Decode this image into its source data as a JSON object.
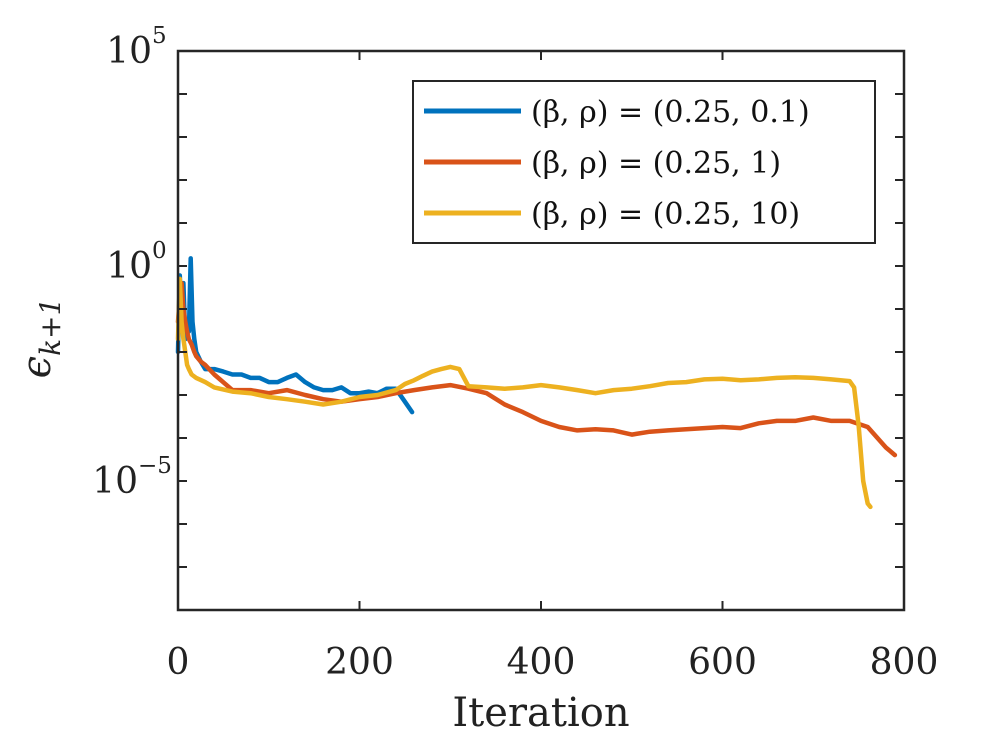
{
  "chart_data": {
    "type": "line",
    "xlabel": "Iteration",
    "ylabel": "ϵ",
    "ylabel_sub": "k+1",
    "xlim": [
      0,
      800
    ],
    "ylim": [
      1e-08,
      100000
    ],
    "yscale": "log",
    "grid": false,
    "legend_position": "top-right",
    "x_ticks": [
      {
        "value": 0,
        "label": "0"
      },
      {
        "value": 200,
        "label": "200"
      },
      {
        "value": 400,
        "label": "400"
      },
      {
        "value": 600,
        "label": "600"
      },
      {
        "value": 800,
        "label": "800"
      }
    ],
    "y_ticks": [
      {
        "value": 100000,
        "base": "10",
        "exp": "5"
      },
      {
        "value": 1,
        "base": "10",
        "exp": "0"
      },
      {
        "value": 1e-05,
        "base": "10",
        "exp": "−5"
      }
    ],
    "y_minor_ticks": [
      10000,
      1000,
      100,
      10,
      0.1,
      0.01,
      0.001,
      0.0001,
      1e-06,
      1e-07
    ],
    "series": [
      {
        "name": "(β, ρ) = (0.25, 0.1)",
        "color": "#0072BD",
        "x": [
          0,
          2,
          4,
          6,
          8,
          10,
          12,
          14,
          16,
          18,
          20,
          25,
          30,
          40,
          50,
          60,
          70,
          80,
          90,
          100,
          110,
          120,
          130,
          140,
          150,
          160,
          170,
          180,
          190,
          200,
          210,
          220,
          230,
          240,
          250,
          258
        ],
        "y": [
          0.01,
          0.6,
          0.05,
          0.4,
          0.02,
          0.03,
          0.03,
          1.5,
          0.05,
          0.02,
          0.01,
          0.006,
          0.004,
          0.004,
          0.0035,
          0.003,
          0.003,
          0.0025,
          0.0025,
          0.002,
          0.002,
          0.0025,
          0.003,
          0.002,
          0.0015,
          0.0013,
          0.0013,
          0.0015,
          0.0011,
          0.0011,
          0.0012,
          0.0011,
          0.0014,
          0.0014,
          0.0007,
          0.0004
        ]
      },
      {
        "name": "(β, ρ) = (0.25, 1)",
        "color": "#D95319",
        "x": [
          0,
          2,
          4,
          6,
          8,
          10,
          12,
          15,
          18,
          20,
          25,
          30,
          40,
          60,
          80,
          100,
          120,
          140,
          160,
          180,
          200,
          220,
          240,
          260,
          280,
          300,
          320,
          340,
          360,
          380,
          400,
          420,
          440,
          460,
          480,
          500,
          520,
          540,
          560,
          580,
          600,
          620,
          640,
          660,
          680,
          700,
          720,
          740,
          760,
          780,
          790
        ],
        "y": [
          0.05,
          0.2,
          0.4,
          0.1,
          0.05,
          0.03,
          0.02,
          0.015,
          0.01,
          0.008,
          0.006,
          0.005,
          0.003,
          0.0013,
          0.0013,
          0.0011,
          0.0013,
          0.001,
          0.0008,
          0.0007,
          0.0008,
          0.0009,
          0.0011,
          0.0013,
          0.0015,
          0.0017,
          0.0014,
          0.0011,
          0.0006,
          0.0004,
          0.00025,
          0.00018,
          0.00015,
          0.00016,
          0.00015,
          0.00012,
          0.00014,
          0.00015,
          0.00016,
          0.00017,
          0.00018,
          0.00017,
          0.00022,
          0.00025,
          0.00025,
          0.0003,
          0.00025,
          0.00025,
          0.00018,
          6e-05,
          4e-05
        ]
      },
      {
        "name": "(β, ρ) = (0.25, 10)",
        "color": "#EDB120",
        "x": [
          0,
          2,
          4,
          6,
          8,
          10,
          12,
          15,
          20,
          30,
          40,
          60,
          80,
          100,
          120,
          140,
          160,
          180,
          200,
          220,
          240,
          250,
          260,
          270,
          280,
          290,
          300,
          310,
          320,
          340,
          360,
          380,
          400,
          420,
          440,
          460,
          480,
          500,
          520,
          540,
          560,
          580,
          600,
          620,
          640,
          660,
          680,
          700,
          720,
          740,
          745,
          750,
          755,
          760,
          763
        ],
        "y": [
          0.02,
          0.5,
          0.05,
          0.02,
          0.01,
          0.005,
          0.004,
          0.003,
          0.0025,
          0.002,
          0.0015,
          0.0012,
          0.0011,
          0.0009,
          0.0008,
          0.0007,
          0.0006,
          0.0007,
          0.0009,
          0.001,
          0.0013,
          0.0018,
          0.0022,
          0.0028,
          0.0035,
          0.004,
          0.0045,
          0.004,
          0.0016,
          0.0015,
          0.0014,
          0.0015,
          0.0017,
          0.0015,
          0.0013,
          0.0011,
          0.0013,
          0.0014,
          0.0016,
          0.0019,
          0.002,
          0.0023,
          0.0024,
          0.0022,
          0.0023,
          0.0025,
          0.0026,
          0.0025,
          0.0023,
          0.0021,
          0.0015,
          0.0002,
          1e-05,
          3e-06,
          2.5e-06
        ]
      }
    ]
  }
}
